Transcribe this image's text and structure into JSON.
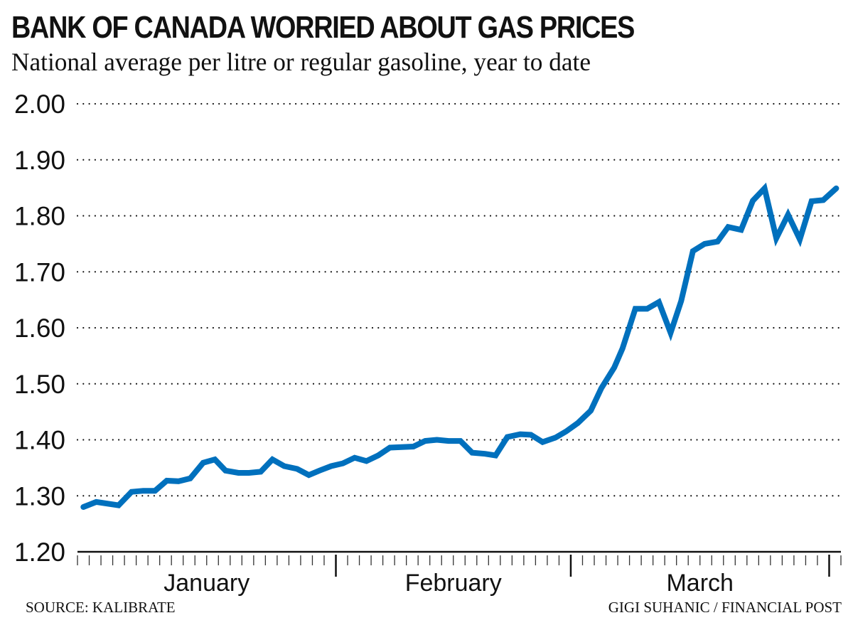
{
  "title": "BANK OF CANADA WORRIED ABOUT GAS PRICES",
  "subtitle": "National average per litre or regular gasoline, year to date",
  "source": "SOURCE: KALIBRATE",
  "credit": "GIGI SUHANIC / FINANCIAL POST",
  "colors": {
    "line": "#0070bd",
    "text": "#111111",
    "grid": "#111111"
  },
  "chart_data": {
    "type": "line",
    "title": "BANK OF CANADA WORRIED ABOUT GAS PRICES",
    "subtitle": "National average per litre or regular gasoline, year to date",
    "xlabel": "",
    "ylabel": "",
    "ylim": [
      1.2,
      2.0
    ],
    "yticks": [
      1.2,
      1.3,
      1.4,
      1.5,
      1.6,
      1.7,
      1.8,
      1.9,
      2.0
    ],
    "ytick_labels": [
      "1.20",
      "1.30",
      "1.40",
      "1.50",
      "1.60",
      "1.70",
      "1.80",
      "1.90",
      "2.00"
    ],
    "grid": "horizontal dotted",
    "x_unit": "day",
    "xlim_days": [
      0,
      65
    ],
    "months": [
      {
        "label": "January",
        "start_day": 0,
        "end_day": 22
      },
      {
        "label": "February",
        "start_day": 22,
        "end_day": 42
      },
      {
        "label": "March",
        "start_day": 42,
        "end_day": 64
      }
    ],
    "series": [
      {
        "name": "National average price per litre",
        "x": [
          0.5,
          1.6,
          3.5,
          4.6,
          5.6,
          6.6,
          7.6,
          8.6,
          9.6,
          10.7,
          11.7,
          12.6,
          13.7,
          14.6,
          15.6,
          16.6,
          17.6,
          18.7,
          19.7,
          20.6,
          21.6,
          22.6,
          23.6,
          24.6,
          25.6,
          26.6,
          27.6,
          28.6,
          29.6,
          30.6,
          31.6,
          32.6,
          33.6,
          34.7,
          35.6,
          36.6,
          37.7,
          38.6,
          39.6,
          40.7,
          41.6,
          42.6,
          43.7,
          44.6,
          45.7,
          46.4,
          47.5,
          48.5,
          49.5,
          50.5,
          51.4,
          52.4,
          53.4,
          54.5,
          55.4,
          56.5,
          57.5,
          58.5,
          59.5,
          60.5,
          61.5,
          62.5,
          63.5,
          64.6
        ],
        "values": [
          1.28,
          1.289,
          1.283,
          1.307,
          1.309,
          1.309,
          1.327,
          1.326,
          1.331,
          1.359,
          1.365,
          1.345,
          1.341,
          1.341,
          1.343,
          1.365,
          1.353,
          1.348,
          1.337,
          1.345,
          1.353,
          1.358,
          1.368,
          1.362,
          1.372,
          1.386,
          1.387,
          1.388,
          1.398,
          1.4,
          1.398,
          1.398,
          1.377,
          1.375,
          1.372,
          1.405,
          1.41,
          1.409,
          1.396,
          1.404,
          1.415,
          1.43,
          1.452,
          1.492,
          1.529,
          1.563,
          1.634,
          1.634,
          1.646,
          1.591,
          1.648,
          1.737,
          1.75,
          1.754,
          1.78,
          1.775,
          1.827,
          1.849,
          1.76,
          1.802,
          1.758,
          1.826,
          1.828,
          1.849
        ]
      }
    ]
  }
}
